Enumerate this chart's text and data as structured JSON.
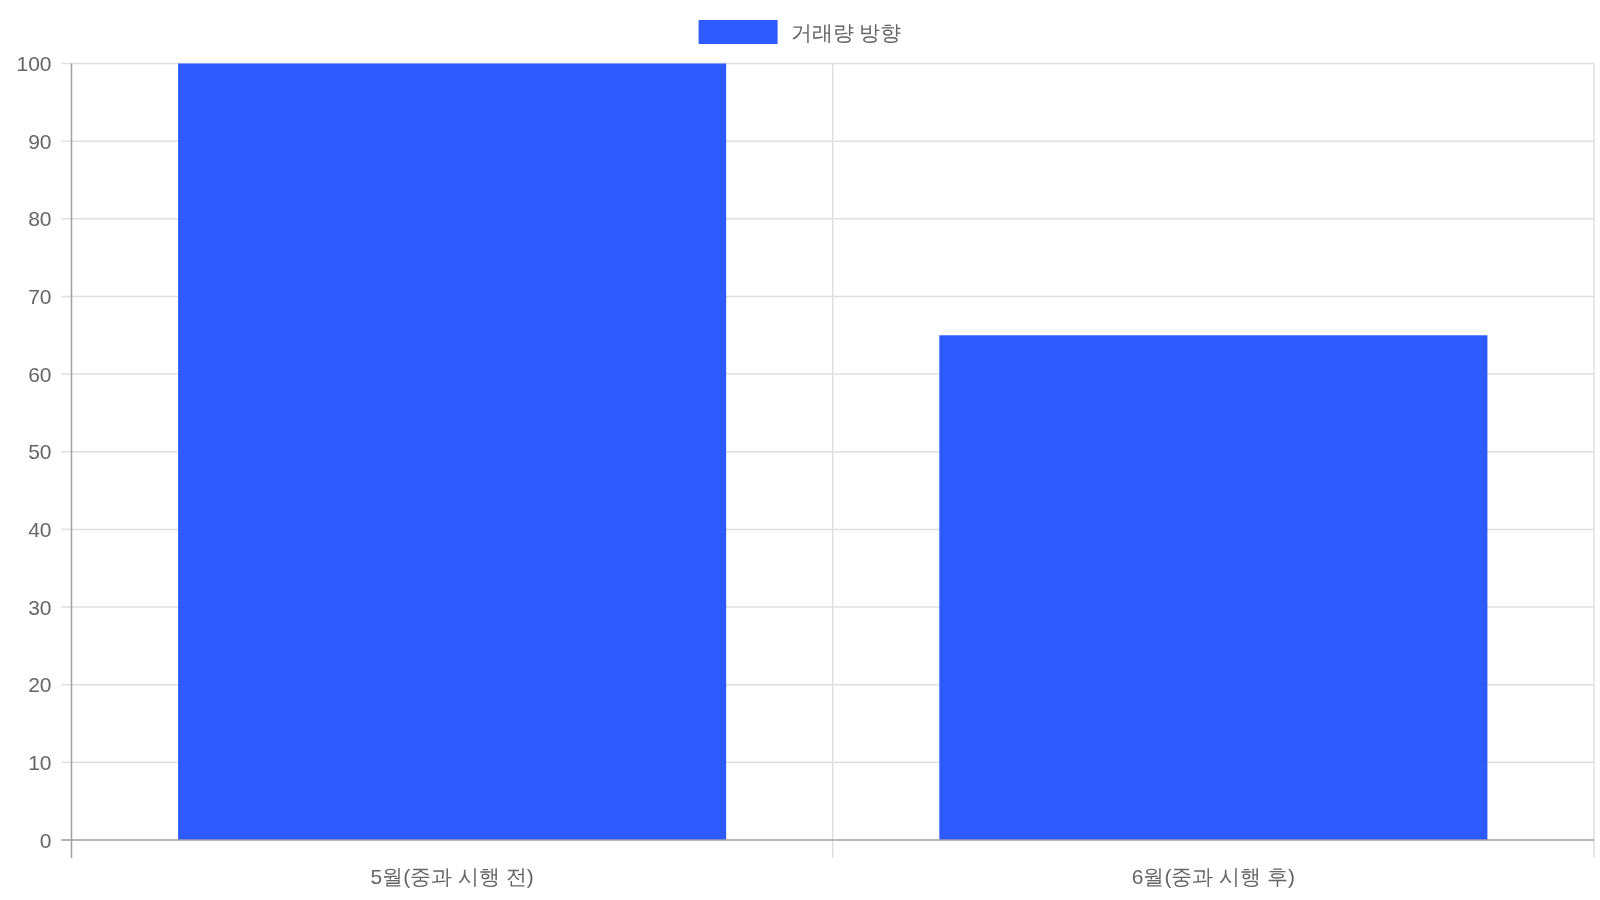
{
  "chart_data": {
    "type": "bar",
    "categories": [
      "5월(중과 시행 전)",
      "6월(중과 시행 후)"
    ],
    "series": [
      {
        "name": "거래량 방향",
        "color": "#2d5bff",
        "values": [
          100,
          65
        ]
      }
    ],
    "ylim": [
      0,
      100
    ],
    "yticks": [
      0,
      10,
      20,
      30,
      40,
      50,
      60,
      70,
      80,
      90,
      100
    ],
    "grid": true,
    "legend": "top"
  }
}
